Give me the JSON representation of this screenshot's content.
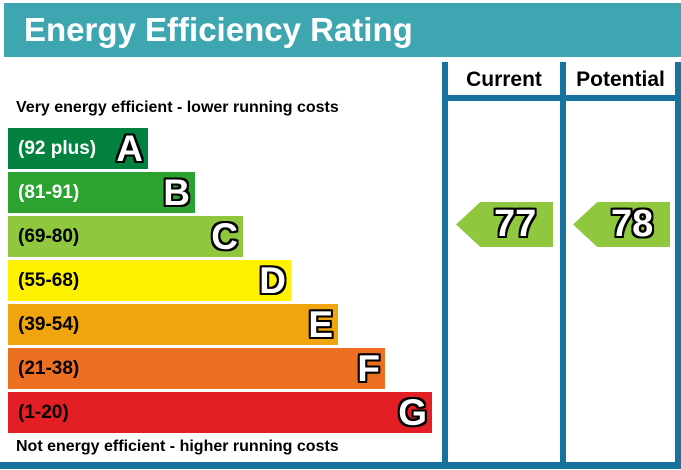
{
  "chart_data": {
    "type": "bar",
    "title": "Energy Efficiency Rating",
    "top_label": "Very energy efficient - lower running costs",
    "bottom_label": "Not energy efficient - higher running costs",
    "columns": [
      {
        "label": "Current"
      },
      {
        "label": "Potential"
      }
    ],
    "bands": [
      {
        "letter": "A",
        "range_label": "(92 plus)",
        "min": 92,
        "max": 100,
        "color": "#03813E",
        "label_color": "#ffffff"
      },
      {
        "letter": "B",
        "range_label": "(81-91)",
        "min": 81,
        "max": 91,
        "color": "#2CA330",
        "label_color": "#ffffff"
      },
      {
        "letter": "C",
        "range_label": "(69-80)",
        "min": 69,
        "max": 80,
        "color": "#8FC73E",
        "label_color": "#000000"
      },
      {
        "letter": "D",
        "range_label": "(55-68)",
        "min": 55,
        "max": 68,
        "color": "#FEF200",
        "label_color": "#000000"
      },
      {
        "letter": "E",
        "range_label": "(39-54)",
        "min": 39,
        "max": 54,
        "color": "#F0A40D",
        "label_color": "#000000"
      },
      {
        "letter": "F",
        "range_label": "(21-38)",
        "min": 21,
        "max": 38,
        "color": "#ED7022",
        "label_color": "#000000"
      },
      {
        "letter": "G",
        "range_label": "(1-20)",
        "min": 1,
        "max": 20,
        "color": "#E31E25",
        "label_color": "#000000"
      }
    ],
    "markers": [
      {
        "column": "Current",
        "value": 77,
        "band": "C",
        "color": "#8FC73E"
      },
      {
        "column": "Potential",
        "value": 78,
        "band": "C",
        "color": "#8FC73E"
      }
    ]
  },
  "colors": {
    "header_bg": "#3EA6B1",
    "header_text": "#FFFFFF",
    "table_line": "#17729E"
  }
}
